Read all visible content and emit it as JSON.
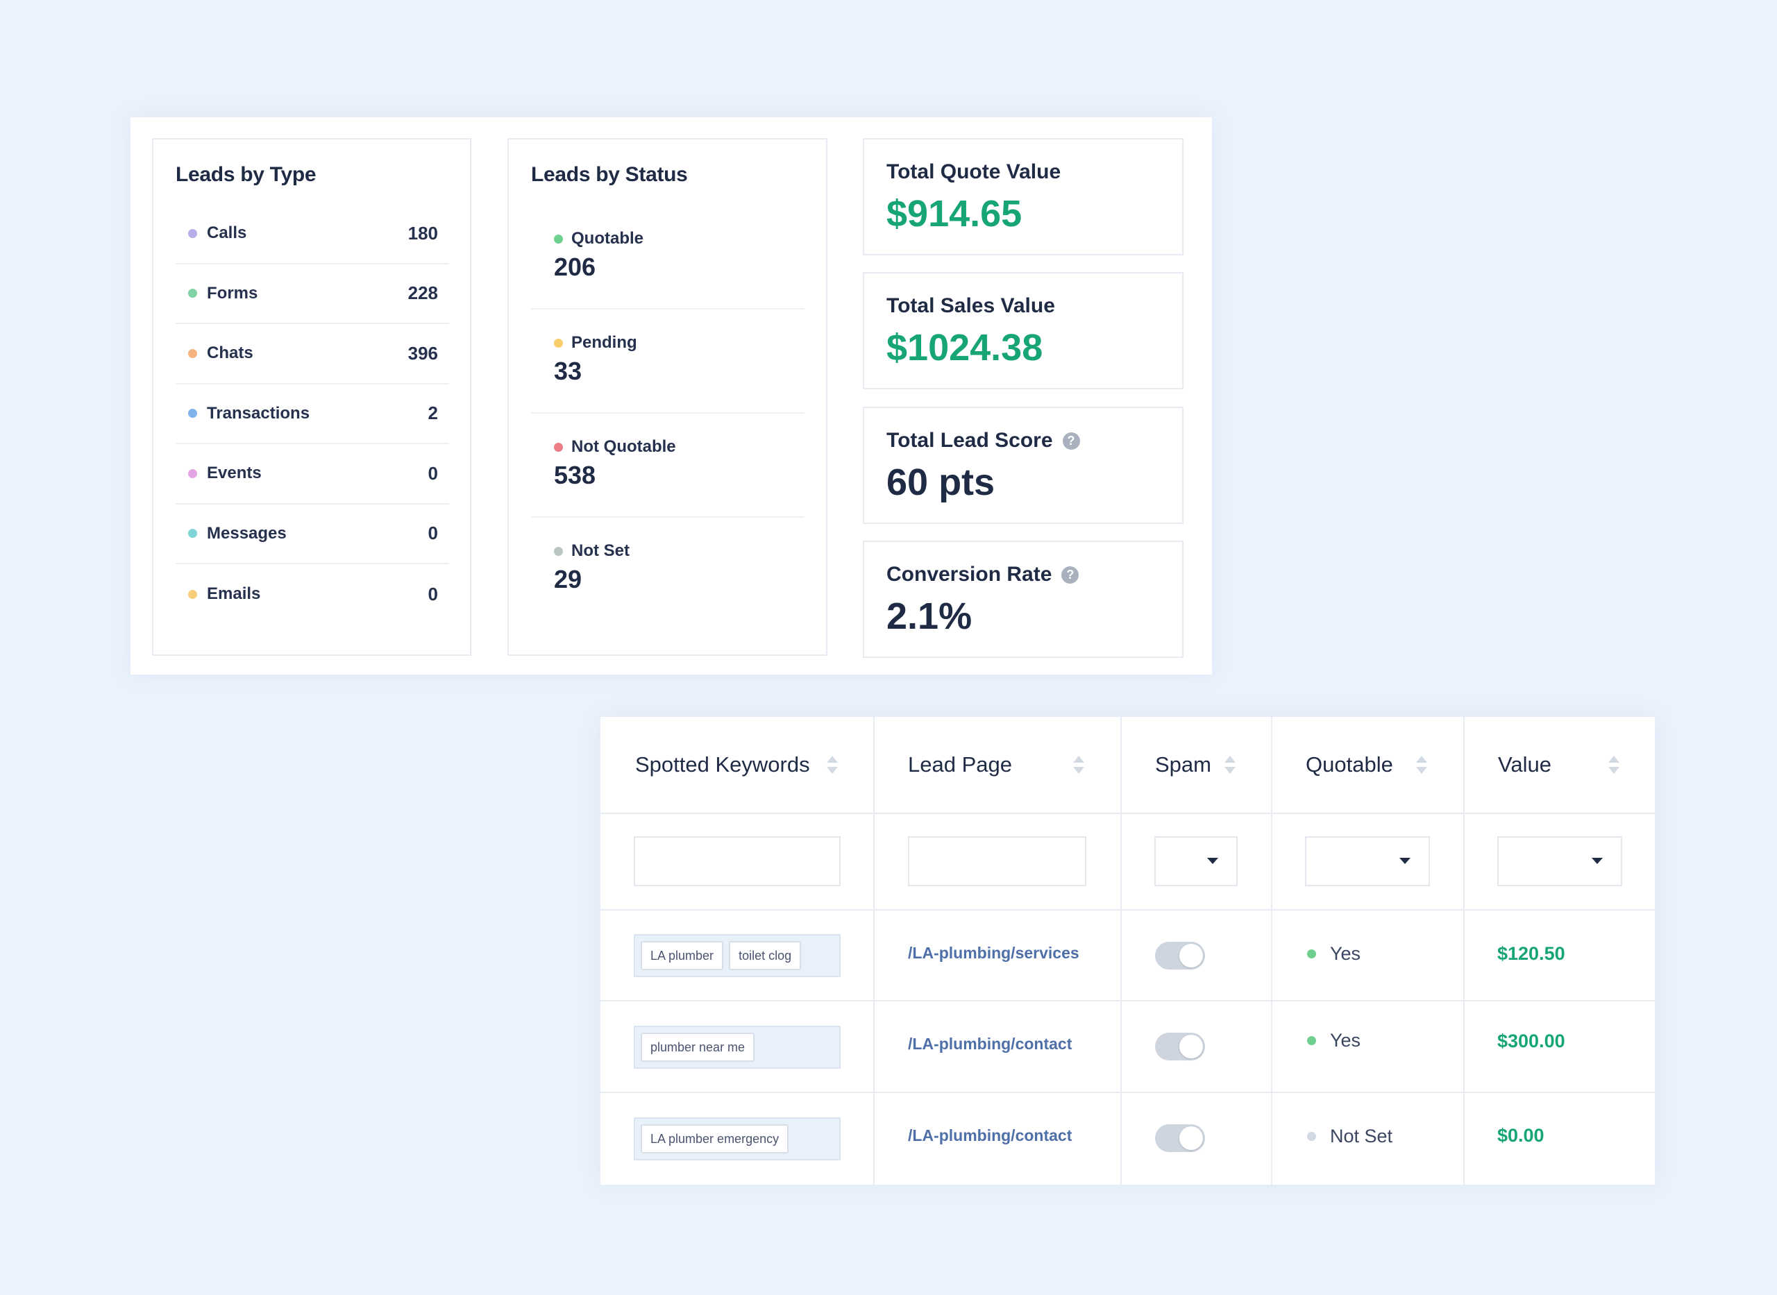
{
  "leads_by_type": {
    "title": "Leads by Type",
    "items": [
      {
        "label": "Calls",
        "count": "180",
        "color": "#b5aee8"
      },
      {
        "label": "Forms",
        "count": "228",
        "color": "#7fd3a5"
      },
      {
        "label": "Chats",
        "count": "396",
        "color": "#f5b37d"
      },
      {
        "label": "Transactions",
        "count": "2",
        "color": "#7fb2ea"
      },
      {
        "label": "Events",
        "count": "0",
        "color": "#e5a4e6"
      },
      {
        "label": "Messages",
        "count": "0",
        "color": "#7fd4d6"
      },
      {
        "label": "Emails",
        "count": "0",
        "color": "#f8ce7c"
      }
    ]
  },
  "leads_by_status": {
    "title": "Leads by Status",
    "items": [
      {
        "label": "Quotable",
        "count": "206",
        "color": "#6fcf8f"
      },
      {
        "label": "Pending",
        "count": "33",
        "color": "#f8ce6a"
      },
      {
        "label": "Not Quotable",
        "count": "538",
        "color": "#ee7d86"
      },
      {
        "label": "Not Set",
        "count": "29",
        "color": "#b8c7c1"
      }
    ]
  },
  "metrics": {
    "quote": {
      "title": "Total Quote Value",
      "value": "$914.65"
    },
    "sales": {
      "title": "Total Sales Value",
      "value": "$1024.38"
    },
    "score": {
      "title": "Total Lead Score",
      "value": "60 pts"
    },
    "conversion": {
      "title": "Conversion Rate",
      "value": "2.1%"
    },
    "help_glyph": "?"
  },
  "table": {
    "columns": {
      "keywords": "Spotted Keywords",
      "page": "Lead Page",
      "spam": "Spam",
      "quotable": "Quotable",
      "value": "Value"
    },
    "rows": [
      {
        "keywords": [
          "LA plumber",
          "toilet clog"
        ],
        "page": "/LA-plumbing/services",
        "spam_on": false,
        "quotable": "Yes",
        "quotable_color": "#6fcf8f",
        "value": "$120.50"
      },
      {
        "keywords": [
          "plumber near me"
        ],
        "page": "/LA-plumbing/contact",
        "spam_on": false,
        "quotable": "Yes",
        "quotable_color": "#6fcf8f",
        "value": "$300.00"
      },
      {
        "keywords": [
          "LA plumber emergency"
        ],
        "page": "/LA-plumbing/contact",
        "spam_on": false,
        "quotable": "Not Set",
        "quotable_color": "#d3d9e2",
        "value": "$0.00"
      }
    ]
  }
}
